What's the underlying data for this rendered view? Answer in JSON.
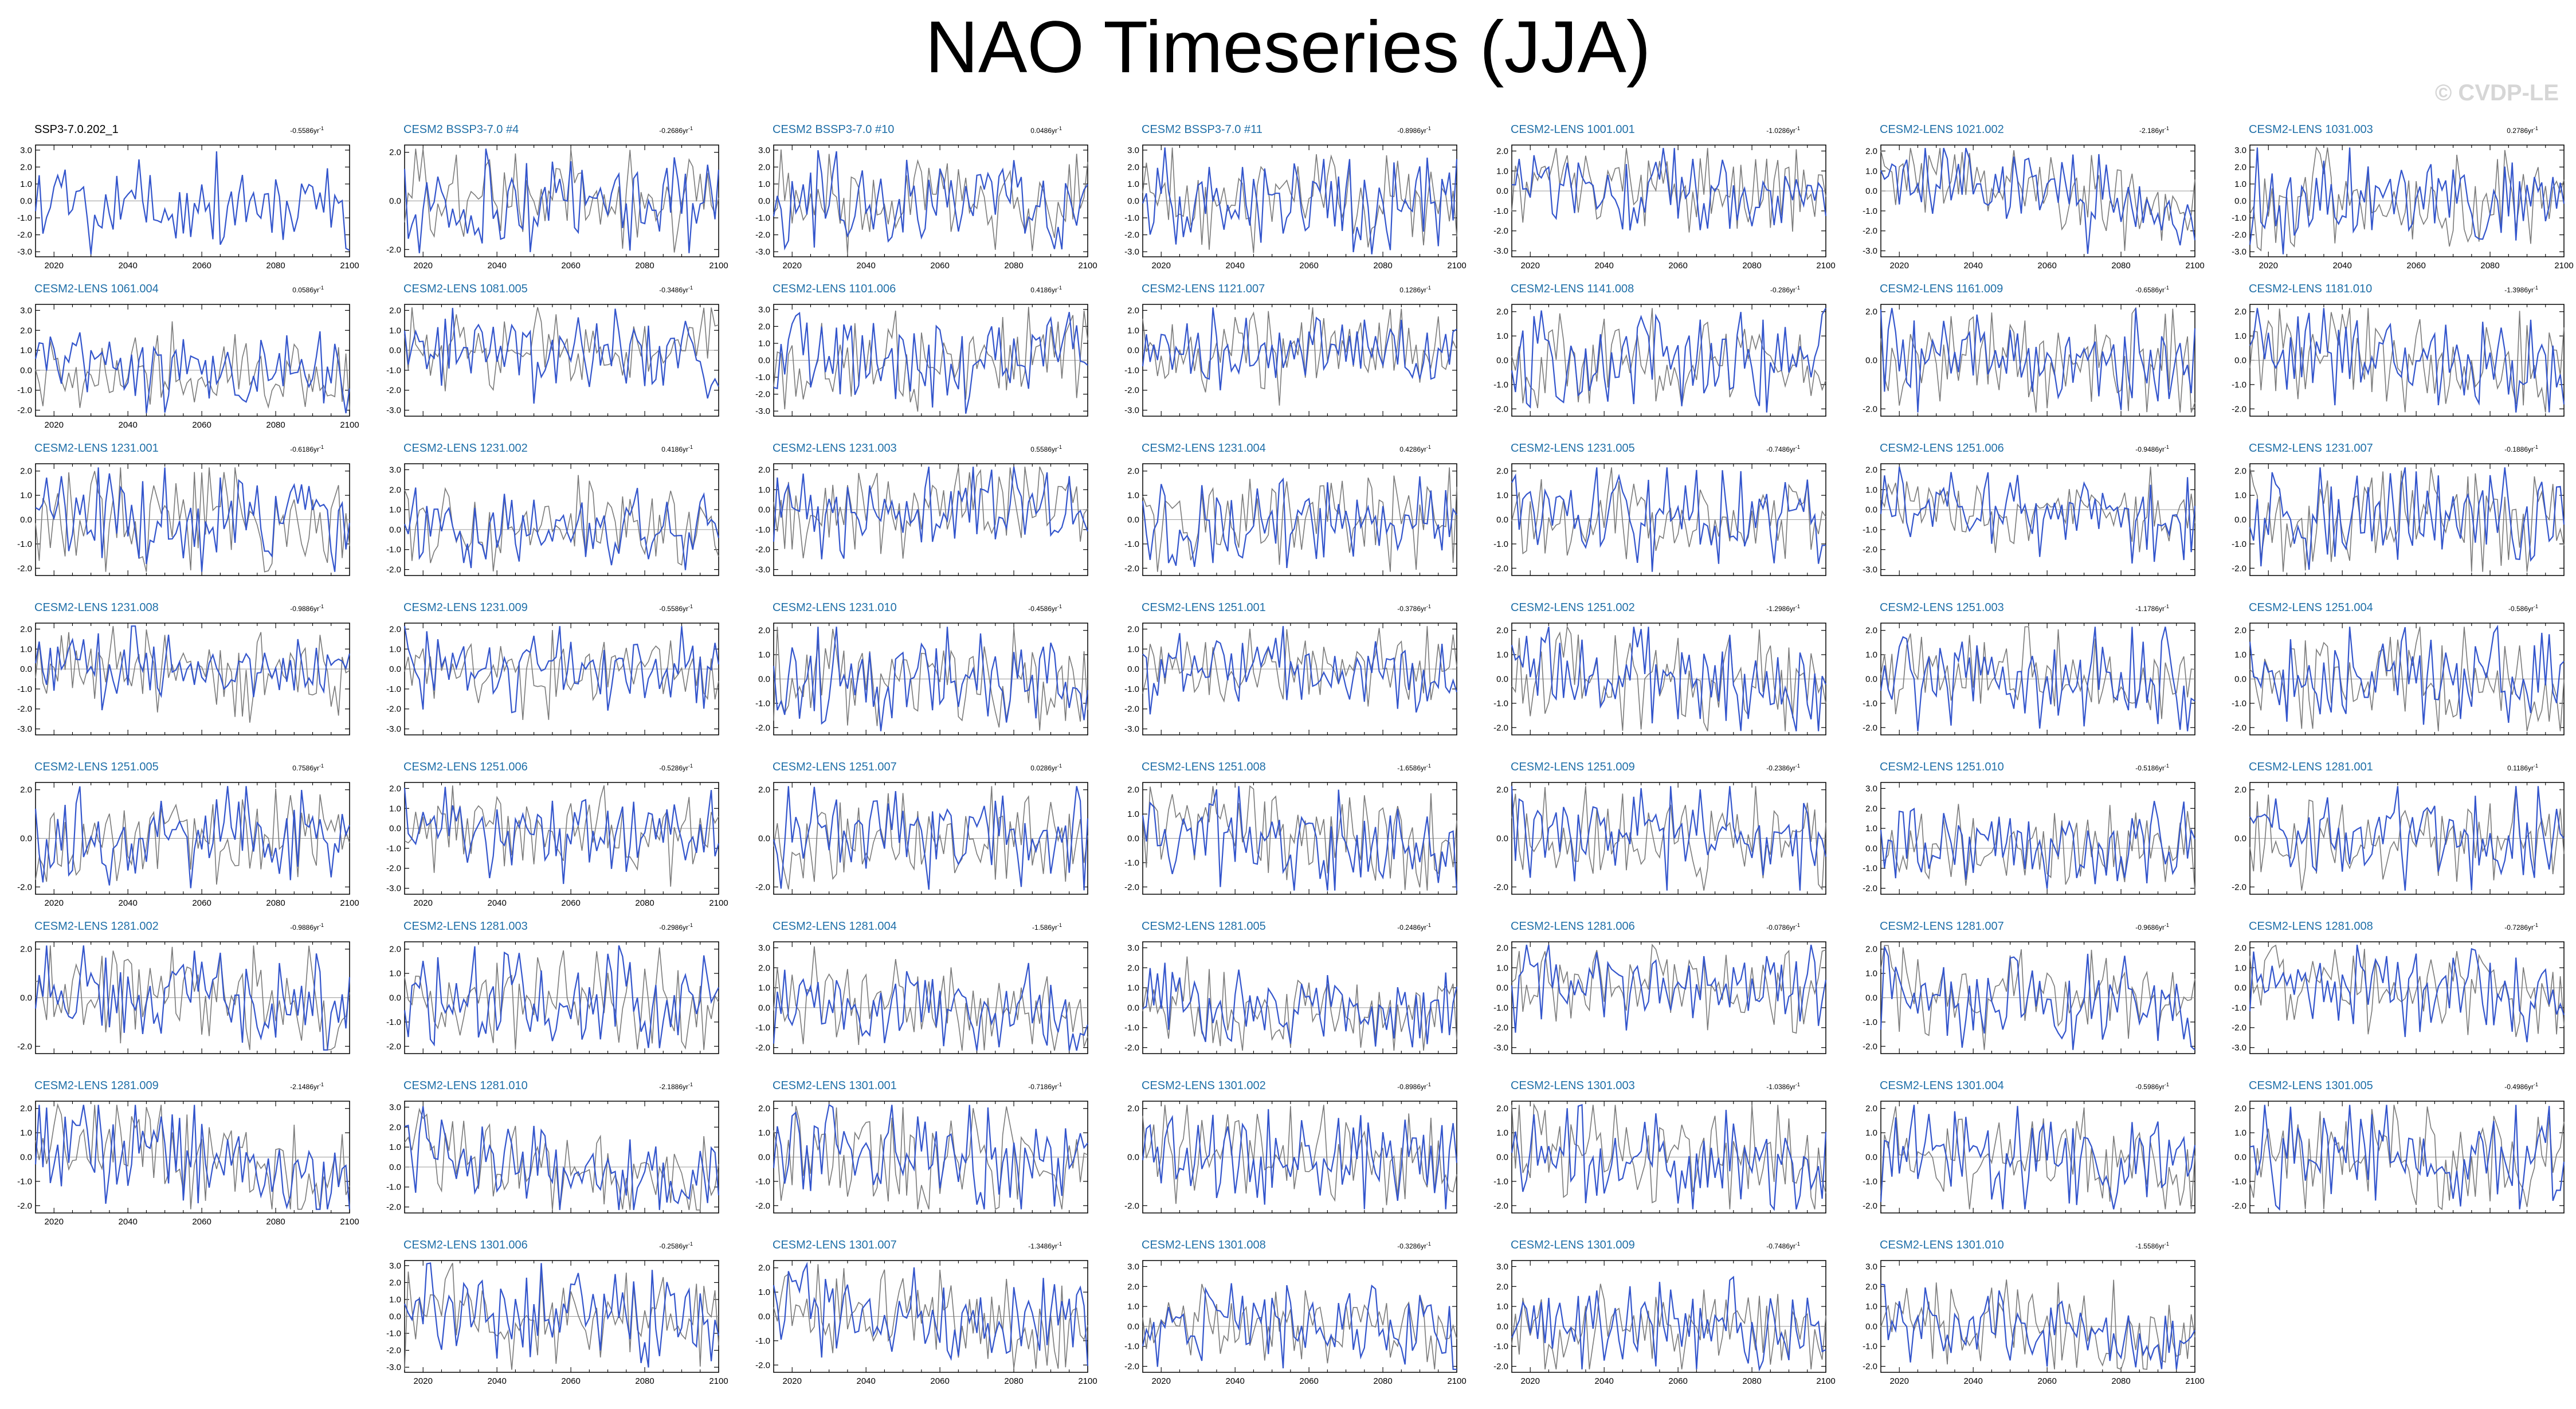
{
  "title": "NAO Timeseries (JJA)",
  "watermark": "© CVDP-LE",
  "colors": {
    "model": "#3355cc",
    "obs": "#000000",
    "ref": "#7a7a7a",
    "zero": "#9a9a9a",
    "title_model": "#1f6fa8"
  },
  "trend_unit": "86yr",
  "trend_exp": "-1",
  "chart_data": {
    "type": "line",
    "x_range": [
      2015,
      2100
    ],
    "x_ticks": [
      2020,
      2040,
      2060,
      2080,
      2100
    ],
    "panels": [
      {
        "name": "SSP3-7.0.202_1",
        "trend": "-0.55",
        "yticks": [
          "3.0",
          "2.0",
          "1.0",
          "0.0",
          "-1.0",
          "-2.0",
          "-3.0"
        ],
        "x_labels": true
      },
      {
        "name": "CESM2 BSSP3-7.0 #4",
        "trend": "-0.26",
        "yticks": [
          "2.0",
          "0.0",
          "-2.0"
        ],
        "x_labels": true
      },
      {
        "name": "CESM2 BSSP3-7.0 #10",
        "trend": "0.04",
        "yticks": [
          "3.0",
          "2.0",
          "1.0",
          "0.0",
          "-1.0",
          "-2.0",
          "-3.0"
        ],
        "x_labels": true
      },
      {
        "name": "CESM2 BSSP3-7.0 #11",
        "trend": "-0.89",
        "yticks": [
          "3.0",
          "2.0",
          "1.0",
          "0.0",
          "-1.0",
          "-2.0",
          "-3.0"
        ],
        "x_labels": true
      },
      {
        "name": "CESM2-LENS 1001.001",
        "trend": "-1.02",
        "yticks": [
          "2.0",
          "1.0",
          "0.0",
          "-1.0",
          "-2.0",
          "-3.0"
        ],
        "x_labels": true
      },
      {
        "name": "CESM2-LENS 1021.002",
        "trend": "-2.1",
        "yticks": [
          "2.0",
          "1.0",
          "0.0",
          "-1.0",
          "-2.0",
          "-3.0"
        ],
        "x_labels": true
      },
      {
        "name": "CESM2-LENS 1031.003",
        "trend": "0.27",
        "yticks": [
          "3.0",
          "2.0",
          "1.0",
          "0.0",
          "-1.0",
          "-2.0",
          "-3.0"
        ],
        "x_labels": true
      },
      {
        "name": "CESM2-LENS 1061.004",
        "trend": "0.05",
        "yticks": [
          "3.0",
          "2.0",
          "1.0",
          "0.0",
          "-1.0",
          "-2.0"
        ],
        "x_labels": true
      },
      {
        "name": "CESM2-LENS 1081.005",
        "trend": "-0.34",
        "yticks": [
          "2.0",
          "1.0",
          "0.0",
          "-1.0",
          "-2.0",
          "-3.0"
        ],
        "x_labels": false
      },
      {
        "name": "CESM2-LENS 1101.006",
        "trend": "0.41",
        "yticks": [
          "3.0",
          "2.0",
          "1.0",
          "0.0",
          "-1.0",
          "-2.0",
          "-3.0"
        ],
        "x_labels": false
      },
      {
        "name": "CESM2-LENS 1121.007",
        "trend": "0.12",
        "yticks": [
          "2.0",
          "1.0",
          "0.0",
          "-1.0",
          "-2.0",
          "-3.0"
        ],
        "x_labels": false
      },
      {
        "name": "CESM2-LENS 1141.008",
        "trend": "-0.2",
        "yticks": [
          "2.0",
          "1.0",
          "0.0",
          "-1.0",
          "-2.0"
        ],
        "x_labels": false
      },
      {
        "name": "CESM2-LENS 1161.009",
        "trend": "-0.65",
        "yticks": [
          "2.0",
          "0.0",
          "-2.0"
        ],
        "x_labels": false
      },
      {
        "name": "CESM2-LENS 1181.010",
        "trend": "-1.39",
        "yticks": [
          "2.0",
          "1.0",
          "0.0",
          "-1.0",
          "-2.0"
        ],
        "x_labels": false
      },
      {
        "name": "CESM2-LENS 1231.001",
        "trend": "-0.61",
        "yticks": [
          "2.0",
          "1.0",
          "0.0",
          "-1.0",
          "-2.0"
        ],
        "x_labels": false
      },
      {
        "name": "CESM2-LENS 1231.002",
        "trend": "0.41",
        "yticks": [
          "3.0",
          "2.0",
          "1.0",
          "0.0",
          "-1.0",
          "-2.0"
        ],
        "x_labels": false
      },
      {
        "name": "CESM2-LENS 1231.003",
        "trend": "0.55",
        "yticks": [
          "2.0",
          "1.0",
          "0.0",
          "-1.0",
          "-2.0",
          "-3.0"
        ],
        "x_labels": false
      },
      {
        "name": "CESM2-LENS 1231.004",
        "trend": "0.42",
        "yticks": [
          "2.0",
          "1.0",
          "0.0",
          "-1.0",
          "-2.0"
        ],
        "x_labels": false
      },
      {
        "name": "CESM2-LENS 1231.005",
        "trend": "-0.74",
        "yticks": [
          "2.0",
          "1.0",
          "0.0",
          "-1.0",
          "-2.0"
        ],
        "x_labels": false
      },
      {
        "name": "CESM2-LENS 1251.006",
        "trend": "-0.94",
        "yticks": [
          "2.0",
          "1.0",
          "0.0",
          "-1.0",
          "-2.0",
          "-3.0"
        ],
        "x_labels": false
      },
      {
        "name": "CESM2-LENS 1231.007",
        "trend": "-0.18",
        "yticks": [
          "2.0",
          "1.0",
          "0.0",
          "-1.0",
          "-2.0"
        ],
        "x_labels": false
      },
      {
        "name": "CESM2-LENS 1231.008",
        "trend": "-0.98",
        "yticks": [
          "2.0",
          "1.0",
          "0.0",
          "-1.0",
          "-2.0",
          "-3.0"
        ],
        "x_labels": false
      },
      {
        "name": "CESM2-LENS 1231.009",
        "trend": "-0.55",
        "yticks": [
          "2.0",
          "1.0",
          "0.0",
          "-1.0",
          "-2.0",
          "-3.0"
        ],
        "x_labels": false
      },
      {
        "name": "CESM2-LENS 1231.010",
        "trend": "-0.45",
        "yticks": [
          "2.0",
          "1.0",
          "0.0",
          "-1.0",
          "-2.0"
        ],
        "x_labels": false
      },
      {
        "name": "CESM2-LENS 1251.001",
        "trend": "-0.37",
        "yticks": [
          "2.0",
          "1.0",
          "0.0",
          "-1.0",
          "-2.0",
          "-3.0"
        ],
        "x_labels": false
      },
      {
        "name": "CESM2-LENS 1251.002",
        "trend": "-1.29",
        "yticks": [
          "2.0",
          "1.0",
          "0.0",
          "-1.0",
          "-2.0"
        ],
        "x_labels": false
      },
      {
        "name": "CESM2-LENS 1251.003",
        "trend": "-1.17",
        "yticks": [
          "2.0",
          "1.0",
          "0.0",
          "-1.0",
          "-2.0"
        ],
        "x_labels": false
      },
      {
        "name": "CESM2-LENS 1251.004",
        "trend": "-0.5",
        "yticks": [
          "2.0",
          "1.0",
          "0.0",
          "-1.0",
          "-2.0"
        ],
        "x_labels": false
      },
      {
        "name": "CESM2-LENS 1251.005",
        "trend": "0.75",
        "yticks": [
          "2.0",
          "0.0",
          "-2.0"
        ],
        "x_labels": true
      },
      {
        "name": "CESM2-LENS 1251.006",
        "trend": "-0.52",
        "yticks": [
          "2.0",
          "1.0",
          "0.0",
          "-1.0",
          "-2.0",
          "-3.0"
        ],
        "x_labels": true
      },
      {
        "name": "CESM2-LENS 1251.007",
        "trend": "0.02",
        "yticks": [
          "2.0",
          "0.0",
          "-2.0"
        ],
        "x_labels": false
      },
      {
        "name": "CESM2-LENS 1251.008",
        "trend": "-1.65",
        "yticks": [
          "2.0",
          "1.0",
          "0.0",
          "-1.0",
          "-2.0"
        ],
        "x_labels": false
      },
      {
        "name": "CESM2-LENS 1251.009",
        "trend": "-0.23",
        "yticks": [
          "2.0",
          "0.0",
          "-2.0"
        ],
        "x_labels": false
      },
      {
        "name": "CESM2-LENS 1251.010",
        "trend": "-0.51",
        "yticks": [
          "3.0",
          "2.0",
          "1.0",
          "0.0",
          "-1.0",
          "-2.0"
        ],
        "x_labels": false
      },
      {
        "name": "CESM2-LENS 1281.001",
        "trend": "0.11",
        "yticks": [
          "2.0",
          "0.0",
          "-2.0"
        ],
        "x_labels": false
      },
      {
        "name": "CESM2-LENS 1281.002",
        "trend": "-0.98",
        "yticks": [
          "2.0",
          "0.0",
          "-2.0"
        ],
        "x_labels": false
      },
      {
        "name": "CESM2-LENS 1281.003",
        "trend": "-0.29",
        "yticks": [
          "2.0",
          "1.0",
          "0.0",
          "-1.0",
          "-2.0"
        ],
        "x_labels": false
      },
      {
        "name": "CESM2-LENS 1281.004",
        "trend": "-1.5",
        "yticks": [
          "3.0",
          "2.0",
          "1.0",
          "0.0",
          "-1.0",
          "-2.0"
        ],
        "x_labels": false
      },
      {
        "name": "CESM2-LENS 1281.005",
        "trend": "-0.24",
        "yticks": [
          "3.0",
          "2.0",
          "1.0",
          "0.0",
          "-1.0",
          "-2.0"
        ],
        "x_labels": false
      },
      {
        "name": "CESM2-LENS 1281.006",
        "trend": "-0.07",
        "yticks": [
          "2.0",
          "1.0",
          "0.0",
          "-1.0",
          "-2.0",
          "-3.0"
        ],
        "x_labels": false
      },
      {
        "name": "CESM2-LENS 1281.007",
        "trend": "-0.96",
        "yticks": [
          "2.0",
          "1.0",
          "0.0",
          "-1.0",
          "-2.0"
        ],
        "x_labels": false
      },
      {
        "name": "CESM2-LENS 1281.008",
        "trend": "-0.72",
        "yticks": [
          "2.0",
          "1.0",
          "0.0",
          "-1.0",
          "-2.0",
          "-3.0"
        ],
        "x_labels": false
      },
      {
        "name": "CESM2-LENS 1281.009",
        "trend": "-2.14",
        "yticks": [
          "2.0",
          "1.0",
          "0.0",
          "-1.0",
          "-2.0"
        ],
        "x_labels": true
      },
      {
        "name": "CESM2-LENS 1281.010",
        "trend": "-2.18",
        "yticks": [
          "3.0",
          "2.0",
          "1.0",
          "0.0",
          "-1.0",
          "-2.0"
        ],
        "x_labels": false
      },
      {
        "name": "CESM2-LENS 1301.001",
        "trend": "-0.71",
        "yticks": [
          "2.0",
          "1.0",
          "0.0",
          "-1.0",
          "-2.0"
        ],
        "x_labels": false
      },
      {
        "name": "CESM2-LENS 1301.002",
        "trend": "-0.89",
        "yticks": [
          "2.0",
          "0.0",
          "-2.0"
        ],
        "x_labels": false
      },
      {
        "name": "CESM2-LENS 1301.003",
        "trend": "-1.03",
        "yticks": [
          "2.0",
          "1.0",
          "0.0",
          "-1.0",
          "-2.0"
        ],
        "x_labels": false
      },
      {
        "name": "CESM2-LENS 1301.004",
        "trend": "-0.59",
        "yticks": [
          "2.0",
          "1.0",
          "0.0",
          "-1.0",
          "-2.0"
        ],
        "x_labels": false
      },
      {
        "name": "CESM2-LENS 1301.005",
        "trend": "-0.49",
        "yticks": [
          "2.0",
          "1.0",
          "0.0",
          "-1.0",
          "-2.0"
        ],
        "x_labels": false
      },
      {
        "name": "CESM2-LENS 1301.006",
        "trend": "-0.25",
        "yticks": [
          "3.0",
          "2.0",
          "1.0",
          "0.0",
          "-1.0",
          "-2.0",
          "-3.0"
        ],
        "x_labels": true
      },
      {
        "name": "CESM2-LENS 1301.007",
        "trend": "-1.34",
        "yticks": [
          "2.0",
          "1.0",
          "0.0",
          "-1.0",
          "-2.0"
        ],
        "x_labels": true
      },
      {
        "name": "CESM2-LENS 1301.008",
        "trend": "-0.32",
        "yticks": [
          "3.0",
          "2.0",
          "1.0",
          "0.0",
          "-1.0",
          "-2.0"
        ],
        "x_labels": true
      },
      {
        "name": "CESM2-LENS 1301.009",
        "trend": "-0.74",
        "yticks": [
          "3.0",
          "2.0",
          "1.0",
          "0.0",
          "-1.0",
          "-2.0"
        ],
        "x_labels": true
      },
      {
        "name": "CESM2-LENS 1301.010",
        "trend": "-1.55",
        "yticks": [
          "3.0",
          "2.0",
          "1.0",
          "0.0",
          "-1.0",
          "-2.0"
        ],
        "x_labels": true
      }
    ]
  }
}
